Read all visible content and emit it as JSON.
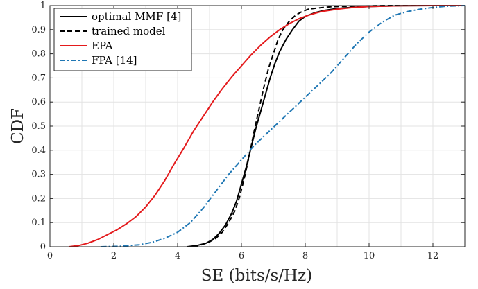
{
  "chart_data": {
    "type": "line",
    "xlabel": "SE (bits/s/Hz)",
    "ylabel": "CDF",
    "xlim": [
      0,
      13
    ],
    "ylim": [
      0,
      1
    ],
    "xticks": [
      "0",
      "2",
      "4",
      "6",
      "8",
      "10",
      "12"
    ],
    "yticks": [
      "0",
      "0.1",
      "0.2",
      "0.3",
      "0.4",
      "0.5",
      "0.6",
      "0.7",
      "0.8",
      "0.9",
      "1"
    ],
    "grid": true,
    "legend_position": "top-left",
    "series": [
      {
        "name": "optimal MMF [4]",
        "color": "#000000",
        "dash": "solid",
        "x": [
          4.3,
          4.6,
          4.9,
          5.1,
          5.3,
          5.5,
          5.7,
          5.85,
          6.0,
          6.15,
          6.3,
          6.45,
          6.6,
          6.75,
          6.9,
          7.05,
          7.2,
          7.4,
          7.6,
          7.8,
          8.0,
          8.3,
          8.6,
          9.0,
          9.5,
          10.0,
          10.5,
          11.0,
          12.0,
          13.0
        ],
        "y": [
          0.0,
          0.005,
          0.015,
          0.03,
          0.055,
          0.09,
          0.14,
          0.19,
          0.26,
          0.33,
          0.41,
          0.49,
          0.56,
          0.63,
          0.7,
          0.76,
          0.81,
          0.86,
          0.9,
          0.935,
          0.955,
          0.97,
          0.98,
          0.988,
          0.993,
          0.996,
          0.998,
          0.999,
          1.0,
          1.0
        ]
      },
      {
        "name": "trained model",
        "color": "#000000",
        "dash": "dashed",
        "x": [
          4.5,
          4.8,
          5.0,
          5.2,
          5.4,
          5.6,
          5.8,
          5.95,
          6.1,
          6.25,
          6.4,
          6.55,
          6.7,
          6.85,
          7.0,
          7.15,
          7.3,
          7.5,
          7.7,
          7.9,
          8.1,
          8.4,
          8.8,
          9.5,
          10.5,
          13.0
        ],
        "y": [
          0.0,
          0.01,
          0.02,
          0.035,
          0.06,
          0.1,
          0.15,
          0.21,
          0.29,
          0.38,
          0.48,
          0.57,
          0.66,
          0.74,
          0.8,
          0.86,
          0.9,
          0.935,
          0.96,
          0.975,
          0.985,
          0.99,
          0.995,
          0.998,
          1.0,
          1.0
        ]
      },
      {
        "name": "EPA",
        "color": "#e41a1c",
        "dash": "solid",
        "x": [
          0.6,
          0.9,
          1.2,
          1.5,
          1.8,
          2.1,
          2.4,
          2.7,
          3.0,
          3.3,
          3.6,
          3.9,
          4.2,
          4.5,
          4.8,
          5.1,
          5.4,
          5.7,
          6.0,
          6.3,
          6.6,
          6.9,
          7.2,
          7.5,
          7.8,
          8.1,
          8.5,
          9.0,
          9.5,
          10.0,
          11.0,
          12.0,
          13.0
        ],
        "y": [
          0.0,
          0.005,
          0.015,
          0.03,
          0.05,
          0.07,
          0.095,
          0.125,
          0.165,
          0.215,
          0.275,
          0.345,
          0.41,
          0.48,
          0.54,
          0.6,
          0.655,
          0.705,
          0.75,
          0.795,
          0.835,
          0.87,
          0.9,
          0.925,
          0.945,
          0.96,
          0.975,
          0.985,
          0.992,
          0.996,
          0.999,
          1.0,
          1.0
        ]
      },
      {
        "name": "FPA [14]",
        "color": "#1f77b4",
        "dash": "dashdot",
        "x": [
          1.6,
          2.2,
          2.8,
          3.2,
          3.6,
          4.0,
          4.4,
          4.8,
          5.2,
          5.6,
          6.0,
          6.4,
          6.8,
          7.2,
          7.6,
          8.0,
          8.4,
          8.8,
          9.2,
          9.6,
          10.0,
          10.4,
          10.8,
          11.2,
          11.6,
          12.0,
          12.4,
          13.0
        ],
        "y": [
          0.0,
          0.002,
          0.008,
          0.018,
          0.035,
          0.06,
          0.1,
          0.16,
          0.23,
          0.3,
          0.36,
          0.42,
          0.47,
          0.52,
          0.57,
          0.62,
          0.67,
          0.72,
          0.78,
          0.84,
          0.89,
          0.93,
          0.96,
          0.975,
          0.985,
          0.992,
          0.997,
          1.0
        ]
      }
    ]
  }
}
